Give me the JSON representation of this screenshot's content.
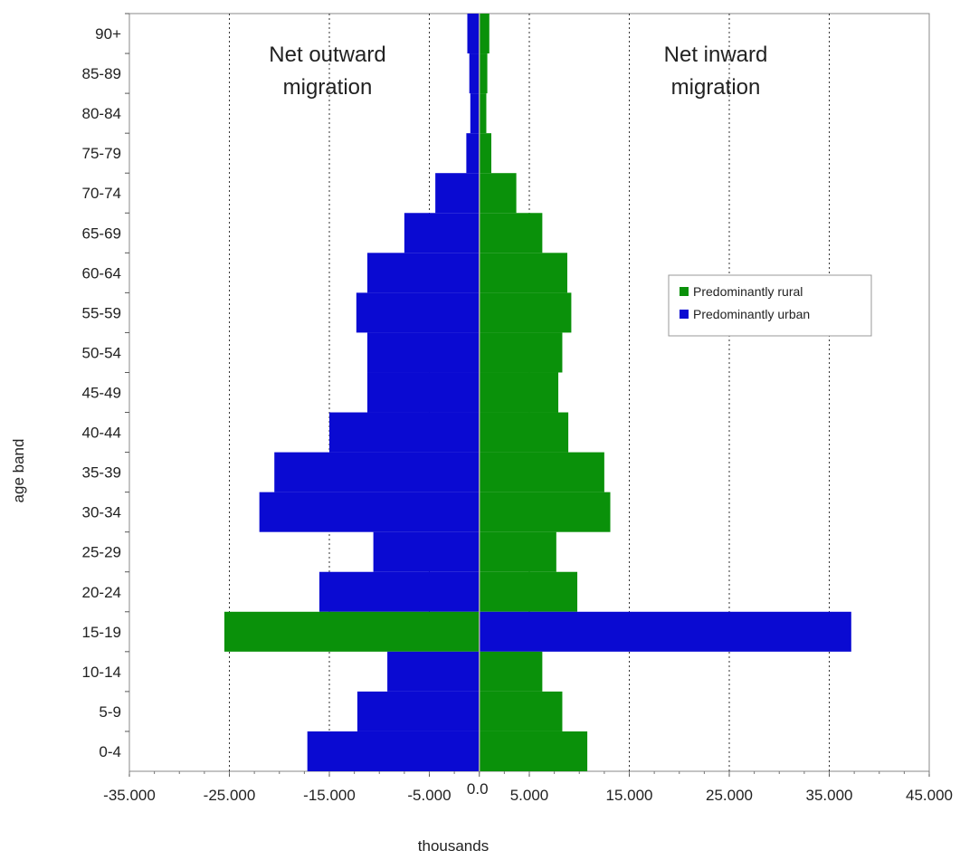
{
  "chart_data": {
    "type": "bar",
    "orientation": "horizontal",
    "xlabel": "thousands",
    "ylabel": "age band",
    "xlim": [
      -35000,
      45000
    ],
    "x_ticks": [
      -35000,
      -25000,
      -15000,
      -5000,
      0,
      5000,
      15000,
      25000,
      35000,
      45000
    ],
    "x_tick_labels": [
      "-35.000",
      "-25.000",
      "-15.000",
      "-5.000",
      "0.0",
      "5.000",
      "15.000",
      "25.000",
      "35.000",
      "45.000"
    ],
    "gridlines": "vertical dotted",
    "categories": [
      "90+",
      "85-89",
      "80-84",
      "75-79",
      "70-74",
      "65-69",
      "60-64",
      "55-59",
      "50-54",
      "45-49",
      "40-44",
      "35-39",
      "30-34",
      "25-29",
      "20-24",
      "15-19",
      "10-14",
      "5-9",
      "0-4"
    ],
    "series": [
      {
        "name": "Predominantly rural",
        "color": "#0a910a",
        "values": [
          1000,
          800,
          700,
          1200,
          3700,
          6300,
          8800,
          9200,
          8300,
          7900,
          8900,
          12500,
          13100,
          7700,
          9800,
          -25500,
          6300,
          8300,
          10800
        ]
      },
      {
        "name": "Predominantly urban",
        "color": "#0a0ad2",
        "values": [
          -1200,
          -1000,
          -900,
          -1300,
          -4400,
          -7500,
          -11200,
          -12300,
          -11200,
          -11200,
          -15000,
          -20500,
          -22000,
          -10600,
          -16000,
          37200,
          -9200,
          -12200,
          -17200
        ]
      }
    ],
    "annotations": [
      {
        "lines": [
          "Net outward",
          "migration"
        ]
      },
      {
        "lines": [
          "Net inward",
          "migration"
        ]
      }
    ],
    "legend_position": "right"
  }
}
